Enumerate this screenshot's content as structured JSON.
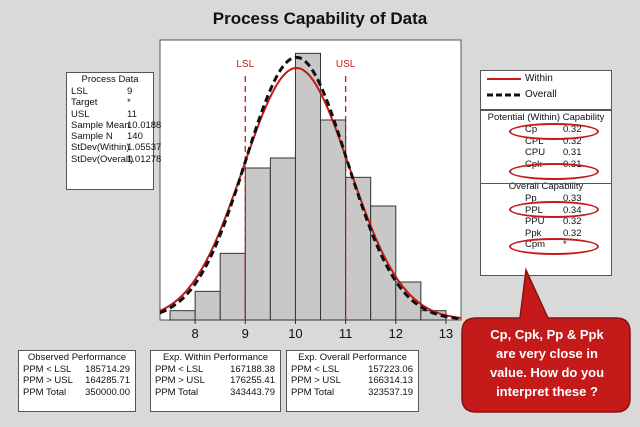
{
  "title": "Process Capability of Data",
  "process_data": {
    "title": "Process Data",
    "rows": [
      {
        "label": "LSL",
        "value": "9"
      },
      {
        "label": "Target",
        "value": "*"
      },
      {
        "label": "USL",
        "value": "11"
      },
      {
        "label": "Sample Mean",
        "value": "10.0188"
      },
      {
        "label": "Sample N",
        "value": "140"
      },
      {
        "label": "StDev(Within)",
        "value": "1.05537"
      },
      {
        "label": "StDev(Overall)",
        "value": "1.01278"
      }
    ]
  },
  "observed_performance": {
    "title": "Observed Performance",
    "rows": [
      {
        "label": "PPM < LSL",
        "value": "185714.29"
      },
      {
        "label": "PPM > USL",
        "value": "164285.71"
      },
      {
        "label": "PPM Total",
        "value": "350000.00"
      }
    ]
  },
  "within_performance": {
    "title": "Exp. Within Performance",
    "rows": [
      {
        "label": "PPM < LSL",
        "value": "167188.38"
      },
      {
        "label": "PPM > USL",
        "value": "176255.41"
      },
      {
        "label": "PPM Total",
        "value": "343443.79"
      }
    ]
  },
  "overall_performance": {
    "title": "Exp. Overall Performance",
    "rows": [
      {
        "label": "PPM < LSL",
        "value": "157223.06"
      },
      {
        "label": "PPM > USL",
        "value": "166314.13"
      },
      {
        "label": "PPM Total",
        "value": "323537.19"
      }
    ]
  },
  "legend": {
    "within": "Within",
    "overall": "Overall"
  },
  "within_capability": {
    "title": "Potential (Within) Capability",
    "rows": [
      {
        "label": "Cp",
        "value": "0.32"
      },
      {
        "label": "CPL",
        "value": "0.32"
      },
      {
        "label": "CPU",
        "value": "0.31"
      },
      {
        "label": "Cpk",
        "value": "0.31"
      }
    ]
  },
  "overall_capability": {
    "title": "Overall Capability",
    "rows": [
      {
        "label": "Pp",
        "value": "0.33"
      },
      {
        "label": "PPL",
        "value": "0.34"
      },
      {
        "label": "PPU",
        "value": "0.32"
      },
      {
        "label": "Ppk",
        "value": "0.32"
      },
      {
        "label": "Cpm",
        "value": "*"
      }
    ]
  },
  "callout": {
    "lines": [
      "Cp, Cpk, Pp & Ppk",
      "are very close in",
      "value.  How do you",
      "interpret these ?"
    ]
  },
  "colors": {
    "within_curve": "#c41a1a",
    "overall_curve": "#111111",
    "bars": "#c8c8c8",
    "spec_lines": "#c41a1a",
    "callout_fill": "#c41a1a"
  },
  "chart_data": {
    "type": "bar",
    "title": "Process Capability of Data",
    "x_ticks": [
      8,
      9,
      10,
      11,
      12,
      13
    ],
    "xlim": [
      7.3,
      13.3
    ],
    "ylim": [
      0,
      0.42
    ],
    "bins": [
      {
        "x0": 7.5,
        "x1": 8.0,
        "density": 0.014
      },
      {
        "x0": 8.0,
        "x1": 8.5,
        "density": 0.043
      },
      {
        "x0": 8.5,
        "x1": 9.0,
        "density": 0.1
      },
      {
        "x0": 9.0,
        "x1": 9.5,
        "density": 0.228
      },
      {
        "x0": 9.5,
        "x1": 10.0,
        "density": 0.243
      },
      {
        "x0": 10.0,
        "x1": 10.5,
        "density": 0.4
      },
      {
        "x0": 10.5,
        "x1": 11.0,
        "density": 0.3
      },
      {
        "x0": 11.0,
        "x1": 11.5,
        "density": 0.214
      },
      {
        "x0": 11.5,
        "x1": 12.0,
        "density": 0.171
      },
      {
        "x0": 12.0,
        "x1": 12.5,
        "density": 0.057
      },
      {
        "x0": 12.5,
        "x1": 13.0,
        "density": 0.014
      }
    ],
    "lsl": 9,
    "usl": 11,
    "lsl_label": "LSL",
    "usl_label": "USL",
    "series": [
      {
        "name": "Within",
        "mean": 10.0188,
        "stdev": 1.05537,
        "style": "solid"
      },
      {
        "name": "Overall",
        "mean": 10.0188,
        "stdev": 1.01278,
        "style": "dashed"
      }
    ]
  }
}
